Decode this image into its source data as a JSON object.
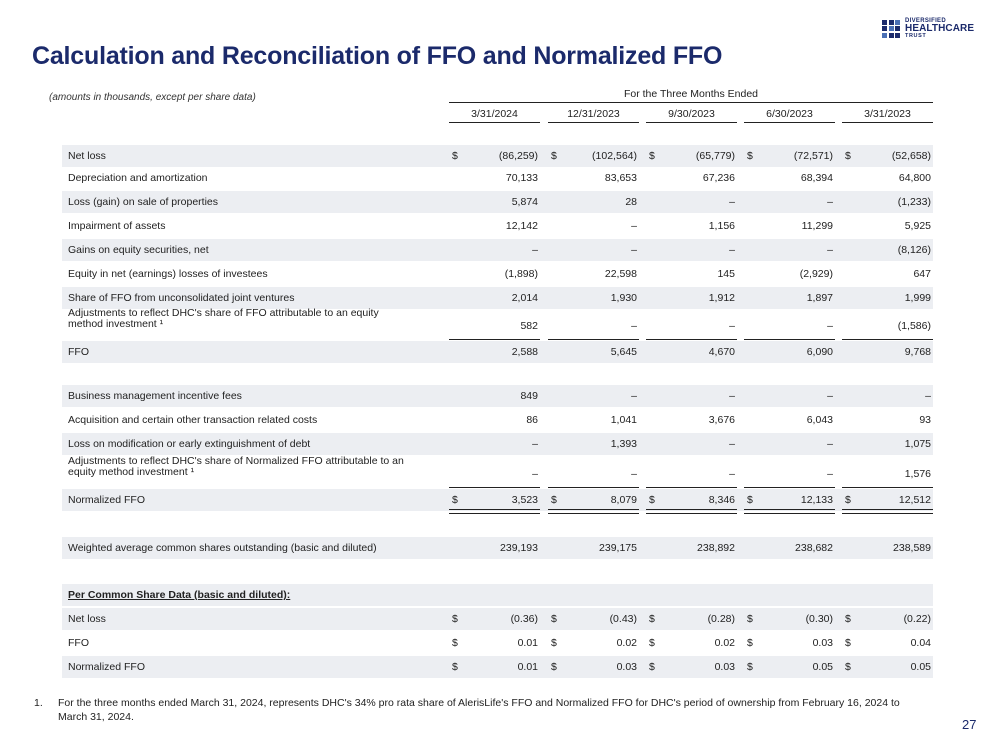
{
  "title": "Calculation and Reconciliation of FFO and Normalized FFO",
  "logo": {
    "line1": "DIVERSIFIED",
    "line2": "HEALTHCARE",
    "line3": "TRUST"
  },
  "subnote": "(amounts in thousands, except per share data)",
  "period_header": "For the Three Months Ended",
  "columns": [
    "3/31/2024",
    "12/31/2023",
    "9/30/2023",
    "6/30/2023",
    "3/31/2023"
  ],
  "rows": [
    {
      "label": "Net loss",
      "dollar": true,
      "values": [
        "(86,259)",
        "(102,564)",
        "(65,779)",
        "(72,571)",
        "(52,658)"
      ]
    },
    {
      "label": "Depreciation and amortization",
      "values": [
        "70,133",
        "83,653",
        "67,236",
        "68,394",
        "64,800"
      ]
    },
    {
      "label": "Loss (gain) on sale of properties",
      "values": [
        "5,874",
        "28",
        "–",
        "–",
        "(1,233)"
      ]
    },
    {
      "label": "Impairment of assets",
      "values": [
        "12,142",
        "–",
        "1,156",
        "11,299",
        "5,925"
      ]
    },
    {
      "label": "Gains on equity securities, net",
      "values": [
        "–",
        "–",
        "–",
        "–",
        "(8,126)"
      ]
    },
    {
      "label": "Equity in net (earnings) losses of investees",
      "values": [
        "(1,898)",
        "22,598",
        "145",
        "(2,929)",
        "647"
      ]
    },
    {
      "label": "Share of FFO from unconsolidated joint ventures",
      "values": [
        "2,014",
        "1,930",
        "1,912",
        "1,897",
        "1,999"
      ]
    },
    {
      "label_line1": "Adjustments to reflect DHC's share of FFO attributable to an equity",
      "label_line2": "method investment ¹",
      "values": [
        "582",
        "–",
        "–",
        "–",
        "(1,586)"
      ]
    },
    {
      "label": "FFO",
      "values": [
        "2,588",
        "5,645",
        "4,670",
        "6,090",
        "9,768"
      ]
    },
    {
      "label": "Business management incentive fees",
      "values": [
        "849",
        "–",
        "–",
        "–",
        "–"
      ]
    },
    {
      "label": "Acquisition and certain other transaction related costs",
      "values": [
        "86",
        "1,041",
        "3,676",
        "6,043",
        "93"
      ]
    },
    {
      "label": "Loss on modification or early extinguishment of debt",
      "values": [
        "–",
        "1,393",
        "–",
        "–",
        "1,075"
      ]
    },
    {
      "label_line1": "Adjustments to reflect DHC's share of Normalized FFO attributable to an",
      "label_line2": "equity method investment ¹",
      "values": [
        "–",
        "–",
        "–",
        "–",
        "1,576"
      ]
    },
    {
      "label": "Normalized FFO",
      "dollar": true,
      "values": [
        "3,523",
        "8,079",
        "8,346",
        "12,133",
        "12,512"
      ]
    },
    {
      "label": "Weighted average common shares outstanding (basic and diluted)",
      "values": [
        "239,193",
        "239,175",
        "238,892",
        "238,682",
        "238,589"
      ]
    },
    {
      "label": "Per Common Share Data (basic and diluted):",
      "values": []
    },
    {
      "label": "Net loss",
      "dollar": true,
      "values": [
        "(0.36)",
        "(0.43)",
        "(0.28)",
        "(0.30)",
        "(0.22)"
      ]
    },
    {
      "label": "FFO",
      "dollar": true,
      "values": [
        "0.01",
        "0.02",
        "0.02",
        "0.03",
        "0.04"
      ]
    },
    {
      "label": "Normalized FFO",
      "dollar": true,
      "values": [
        "0.01",
        "0.03",
        "0.03",
        "0.05",
        "0.05"
      ]
    }
  ],
  "dollar_sign": "$",
  "footnote": {
    "number": "1.",
    "text": "For the three months ended March 31, 2024, represents DHC's 34% pro rata share of AlerisLife's FFO and Normalized FFO for DHC's period of ownership from February 16, 2024 to March 31, 2024."
  },
  "page_number": "27",
  "colors": {
    "title": "#1b2a6b",
    "shade": "#eceef2"
  }
}
